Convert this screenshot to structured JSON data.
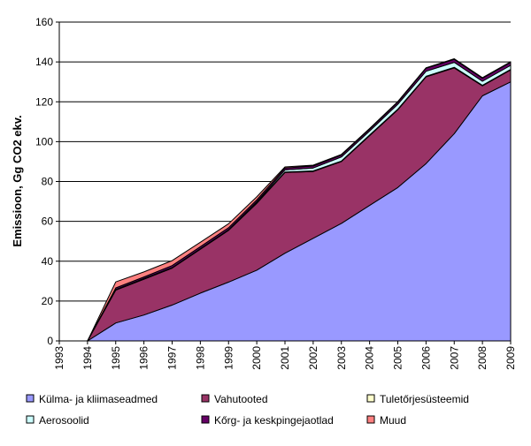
{
  "chart_data": {
    "type": "stacked_area",
    "y_label": "Emissioon, Gg CO2 ekv.",
    "x": [
      1993,
      1994,
      1995,
      1996,
      1997,
      1998,
      1999,
      2000,
      2001,
      2002,
      2003,
      2004,
      2005,
      2006,
      2007,
      2008,
      2009
    ],
    "xlim": [
      1993,
      2009
    ],
    "xticks": [
      1993,
      1994,
      1995,
      1996,
      1997,
      1998,
      1999,
      2000,
      2001,
      2002,
      2003,
      2004,
      2005,
      2006,
      2007,
      2008,
      2009
    ],
    "ylim": [
      0,
      160
    ],
    "yticks": [
      0,
      20,
      40,
      60,
      80,
      100,
      120,
      140,
      160
    ],
    "grid": true,
    "legend": "bottom",
    "series": [
      {
        "name": "Külma- ja kliimaseadmed",
        "color": "#9999ff",
        "values": [
          null,
          0,
          9,
          13,
          18,
          24,
          29.5,
          35.5,
          44,
          51.5,
          59,
          68,
          77,
          89,
          104,
          123,
          130
        ]
      },
      {
        "name": "Vahutooted",
        "color": "#993366",
        "values": [
          null,
          0,
          16.5,
          18,
          18.5,
          22,
          26,
          33.5,
          40.5,
          33.5,
          31,
          35,
          39,
          43.5,
          33,
          5,
          6
        ]
      },
      {
        "name": "Tuletőrjesüsteemid",
        "color": "#ffffcc",
        "values": [
          null,
          0,
          0.3,
          0.3,
          0.3,
          0.3,
          0.3,
          0.3,
          0.3,
          0.3,
          0.3,
          0.3,
          0.3,
          0.3,
          0.3,
          0.3,
          0.3
        ]
      },
      {
        "name": "Aerosoolid",
        "color": "#ccffff",
        "values": [
          null,
          0,
          0,
          0,
          0,
          0,
          0,
          0.5,
          1,
          1.5,
          2,
          2,
          2.5,
          2.5,
          2.5,
          2,
          2
        ]
      },
      {
        "name": "Kőrg- ja keskpingejaotlad",
        "color": "#660066",
        "values": [
          null,
          0,
          0.8,
          0.8,
          1,
          1,
          1,
          1,
          1,
          1,
          1,
          1,
          1,
          1.5,
          1.5,
          1.5,
          1.5
        ]
      },
      {
        "name": "Muud",
        "color": "#ff8080",
        "values": [
          null,
          0,
          3,
          2.5,
          2.5,
          2.2,
          2,
          1.5,
          0.5,
          0.4,
          0.3,
          0.3,
          0.3,
          0.3,
          0.3,
          0.3,
          0.3
        ]
      }
    ]
  }
}
